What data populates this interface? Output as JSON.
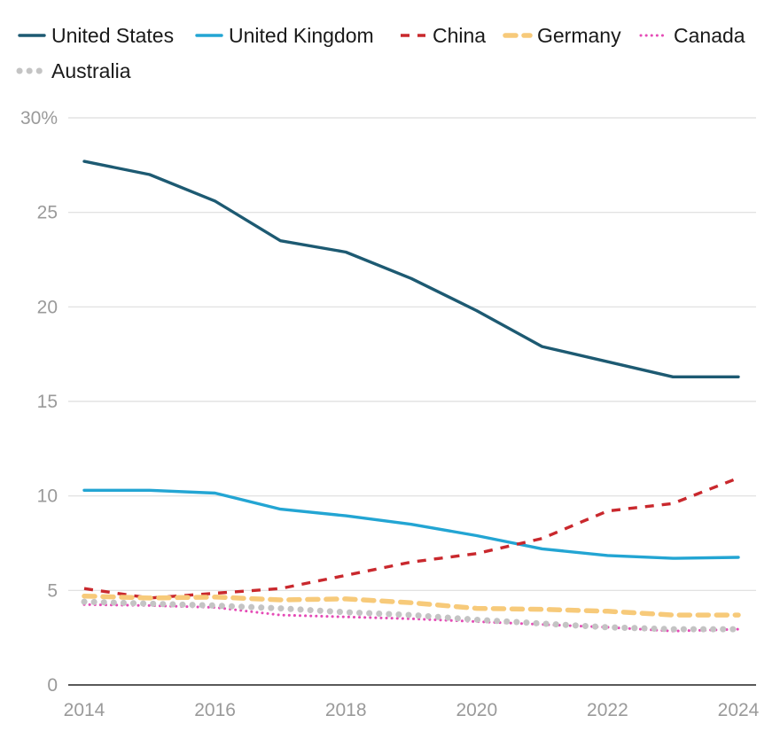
{
  "chart_data": {
    "type": "line",
    "title": "",
    "xlabel": "",
    "ylabel": "",
    "x": [
      2014,
      2015,
      2016,
      2017,
      2018,
      2019,
      2020,
      2021,
      2022,
      2023,
      2024
    ],
    "x_tick_labels": [
      "2014",
      "2016",
      "2018",
      "2020",
      "2022",
      "2024"
    ],
    "x_tick_values": [
      2014,
      2016,
      2018,
      2020,
      2022,
      2024
    ],
    "y_tick_labels": [
      "0",
      "5",
      "10",
      "15",
      "20",
      "25",
      "30%"
    ],
    "y_tick_values": [
      0,
      5,
      10,
      15,
      20,
      25,
      30
    ],
    "xlim": [
      2014,
      2024
    ],
    "ylim": [
      0,
      30
    ],
    "grid": true,
    "legend_position": "top",
    "series": [
      {
        "name": "United States",
        "color": "#1d5a72",
        "style": "solid",
        "values": [
          27.7,
          27.0,
          25.6,
          23.5,
          22.9,
          21.5,
          19.8,
          17.9,
          17.1,
          16.3,
          16.3
        ]
      },
      {
        "name": "United Kingdom",
        "color": "#23a5d3",
        "style": "solid",
        "values": [
          10.3,
          10.3,
          10.15,
          9.3,
          8.95,
          8.5,
          7.9,
          7.2,
          6.85,
          6.7,
          6.75
        ]
      },
      {
        "name": "China",
        "color": "#c9282d",
        "style": "dashed",
        "values": [
          5.1,
          4.6,
          4.85,
          5.1,
          5.8,
          6.5,
          6.95,
          7.75,
          9.2,
          9.6,
          10.95
        ]
      },
      {
        "name": "Germany",
        "color": "#f7ca7a",
        "style": "dashed-thick",
        "values": [
          4.7,
          4.6,
          4.65,
          4.5,
          4.55,
          4.35,
          4.05,
          4.0,
          3.9,
          3.7,
          3.7
        ]
      },
      {
        "name": "Canada",
        "color": "#e54bb6",
        "style": "dotted",
        "values": [
          4.25,
          4.2,
          4.1,
          3.7,
          3.6,
          3.5,
          3.35,
          3.2,
          3.05,
          2.85,
          2.95
        ]
      },
      {
        "name": "Australia",
        "color": "#c4c4c4",
        "style": "dotted-thick",
        "values": [
          4.4,
          4.3,
          4.2,
          4.05,
          3.85,
          3.7,
          3.45,
          3.25,
          3.05,
          2.95,
          2.95
        ]
      }
    ]
  }
}
